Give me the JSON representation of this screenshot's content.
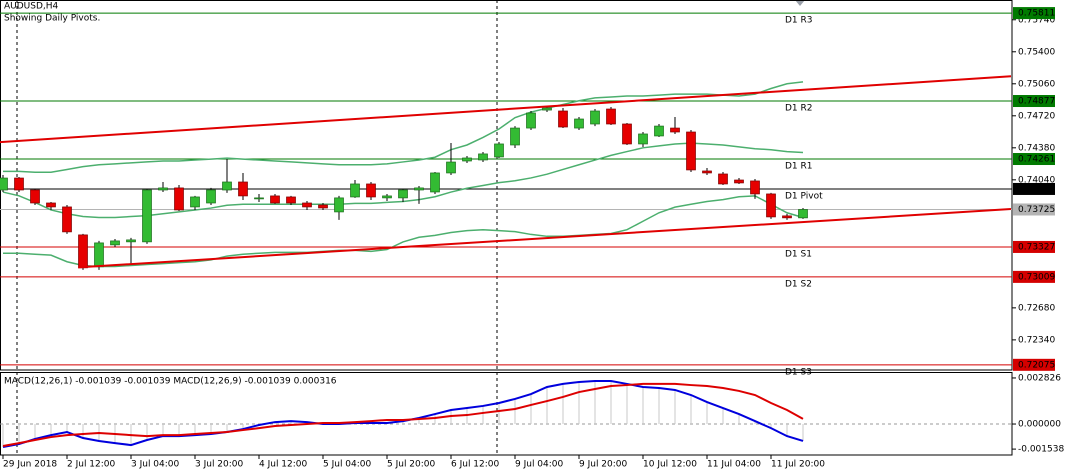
{
  "chart_data": [
    {
      "type": "candlestick",
      "title": "AUDUSD,H4",
      "subtitle": "Showing Daily Pivots.",
      "categories": [
        "29 Jun 2018",
        null,
        null,
        null,
        "2 Jul 12:00",
        null,
        null,
        null,
        "3 Jul 04:00",
        null,
        null,
        null,
        "3 Jul 20:00",
        null,
        null,
        null,
        "4 Jul 12:00",
        null,
        null,
        null,
        "5 Jul 04:00",
        null,
        null,
        null,
        "5 Jul 20:00",
        null,
        null,
        null,
        "6 Jul 12:00",
        null,
        null,
        null,
        "9 Jul 04:00",
        null,
        null,
        null,
        "9 Jul 20:00",
        null,
        null,
        null,
        "10 Jul 12:00",
        null,
        null,
        null,
        "11 Jul 04:00",
        null,
        null,
        null,
        "11 Jul 20:00",
        null,
        null
      ],
      "open": [
        0.73932,
        0.74059,
        0.73932,
        0.73794,
        0.73752,
        0.73455,
        0.73116,
        0.73349,
        0.73381,
        0.73381,
        0.73932,
        0.73954,
        0.73752,
        0.73794,
        0.73932,
        0.74017,
        0.73848,
        0.73869,
        0.73858,
        0.73794,
        0.73773,
        0.73699,
        0.73858,
        0.73996,
        0.73848,
        0.73848,
        0.73932,
        0.73911,
        0.74113,
        0.7424,
        0.74251,
        0.74283,
        0.7441,
        0.7459,
        0.74781,
        0.74771,
        0.7459,
        0.74633,
        0.74792,
        0.74633,
        0.74421,
        0.74506,
        0.7459,
        0.74548,
        0.74134,
        0.74102,
        0.74038,
        0.74028,
        0.7389,
        0.73657,
        0.73636
      ],
      "high": [
        0.74091,
        0.7407,
        0.73943,
        0.73805,
        0.73773,
        0.73466,
        0.73391,
        0.73412,
        0.73423,
        0.73943,
        0.74017,
        0.73985,
        0.73869,
        0.73954,
        0.74261,
        0.74113,
        0.7389,
        0.7389,
        0.73869,
        0.73815,
        0.73794,
        0.73869,
        0.74038,
        0.74017,
        0.7389,
        0.73943,
        0.73975,
        0.74123,
        0.74431,
        0.74293,
        0.74336,
        0.74442,
        0.74611,
        0.74771,
        0.74824,
        0.74803,
        0.74707,
        0.74792,
        0.74813,
        0.74643,
        0.74548,
        0.74633,
        0.74707,
        0.74569,
        0.74166,
        0.74123,
        0.74059,
        0.74049,
        0.73901,
        0.73678,
        0.73741
      ],
      "low": [
        0.73911,
        0.73911,
        0.73773,
        0.7372,
        0.73466,
        0.73083,
        0.73083,
        0.73327,
        0.73136,
        0.7336,
        0.73911,
        0.73709,
        0.7372,
        0.73773,
        0.73901,
        0.73826,
        0.73805,
        0.73784,
        0.73773,
        0.7372,
        0.7372,
        0.73614,
        0.73848,
        0.73826,
        0.73815,
        0.73805,
        0.73784,
        0.7389,
        0.74091,
        0.74219,
        0.74229,
        0.74272,
        0.74378,
        0.74569,
        0.7476,
        0.7459,
        0.74569,
        0.74611,
        0.74622,
        0.7441,
        0.74389,
        0.74495,
        0.74527,
        0.74123,
        0.74091,
        0.73985,
        0.73996,
        0.73837,
        0.73625,
        0.73614,
        0.73625
      ],
      "close": [
        0.74059,
        0.73932,
        0.73794,
        0.73752,
        0.73487,
        0.73105,
        0.7337,
        0.73391,
        0.73402,
        0.73932,
        0.73954,
        0.7372,
        0.73858,
        0.73932,
        0.74017,
        0.73869,
        0.73848,
        0.73794,
        0.73794,
        0.73752,
        0.73741,
        0.73848,
        0.73996,
        0.73858,
        0.73869,
        0.73932,
        0.73954,
        0.74113,
        0.74229,
        0.74272,
        0.74315,
        0.74421,
        0.7459,
        0.7475,
        0.74803,
        0.74601,
        0.74686,
        0.74771,
        0.74633,
        0.74421,
        0.74527,
        0.74611,
        0.74548,
        0.74145,
        0.74113,
        0.73996,
        0.74007,
        0.7389,
        0.73646,
        0.73636,
        0.73725
      ],
      "up_color": "#33bb33",
      "down_color": "#e60000",
      "price_line_color": "#b4b4b4",
      "bands": [
        {
          "color": "#4caf6e",
          "values": [
            0.7413,
            0.7413,
            0.7412,
            0.7412,
            0.7415,
            0.7418,
            0.742,
            0.7421,
            0.7422,
            0.7423,
            0.7424,
            0.7424,
            0.7425,
            0.7426,
            0.7427,
            0.7426,
            0.7425,
            0.7424,
            0.7423,
            0.7422,
            0.7421,
            0.742,
            0.742,
            0.742,
            0.7421,
            0.7423,
            0.7425,
            0.7428,
            0.7436,
            0.7441,
            0.7449,
            0.7458,
            0.747,
            0.7476,
            0.748,
            0.7484,
            0.7488,
            0.7491,
            0.7492,
            0.7493,
            0.7493,
            0.7494,
            0.7495,
            0.7495,
            0.7495,
            0.7494,
            0.7493,
            0.7495,
            0.7501,
            0.7506,
            0.7508
          ]
        },
        {
          "color": "#4caf6e",
          "values": [
            0.7391,
            0.7387,
            0.738,
            0.7372,
            0.7368,
            0.7365,
            0.7364,
            0.7364,
            0.7365,
            0.7366,
            0.7368,
            0.737,
            0.7372,
            0.7374,
            0.7377,
            0.7378,
            0.7378,
            0.7378,
            0.7378,
            0.7378,
            0.7378,
            0.7378,
            0.7379,
            0.7379,
            0.738,
            0.7381,
            0.7383,
            0.7386,
            0.7391,
            0.7395,
            0.7398,
            0.7401,
            0.7403,
            0.7406,
            0.741,
            0.7415,
            0.742,
            0.7425,
            0.743,
            0.7434,
            0.7438,
            0.744,
            0.7442,
            0.7443,
            0.7442,
            0.7441,
            0.7439,
            0.7437,
            0.7436,
            0.7434,
            0.7433
          ]
        },
        {
          "color": "#4caf6e",
          "values": [
            0.7326,
            0.7326,
            0.7325,
            0.7324,
            0.7317,
            0.7313,
            0.7312,
            0.7312,
            0.7313,
            0.7314,
            0.7315,
            0.7316,
            0.7317,
            0.7319,
            0.7323,
            0.7325,
            0.7326,
            0.7327,
            0.7327,
            0.7327,
            0.7328,
            0.7329,
            0.7329,
            0.7328,
            0.733,
            0.7338,
            0.7343,
            0.7345,
            0.7348,
            0.735,
            0.7351,
            0.735,
            0.7349,
            0.7346,
            0.7344,
            0.7344,
            0.7345,
            0.7346,
            0.7347,
            0.7351,
            0.736,
            0.7369,
            0.7375,
            0.7378,
            0.7381,
            0.7383,
            0.7386,
            0.7387,
            0.7378,
            0.7369,
            0.7364
          ]
        }
      ],
      "trendlines": [
        {
          "color": "#e00000",
          "x": [
            -0.2,
            63
          ],
          "values": [
            0.7444,
            0.7514
          ]
        },
        {
          "color": "#e00000",
          "x": [
            4.7,
            63
          ],
          "values": [
            0.7311,
            0.7373
          ]
        }
      ],
      "levels": [
        {
          "name": "D1 R3",
          "value": 0.75811,
          "color": "#007a00"
        },
        {
          "name": "D1 R2",
          "value": 0.74877,
          "color": "#007a00"
        },
        {
          "name": "D1 R1",
          "value": 0.74261,
          "color": "#007a00"
        },
        {
          "name": "D1 Pivot",
          "value": 0.73943,
          "color": "#000000"
        },
        {
          "name": "D1 S1",
          "value": 0.73327,
          "color": "#d40000"
        },
        {
          "name": "D1 S2",
          "value": 0.73009,
          "color": "#d40000"
        },
        {
          "name": "D1 S3",
          "value": 0.72075,
          "color": "#d40000"
        }
      ],
      "ylim": [
        0.7202,
        0.7595
      ],
      "yticks": [
        {
          "value": 0.7574,
          "label": "0.75740"
        },
        {
          "value": 0.754,
          "label": "0.75400"
        },
        {
          "value": 0.7506,
          "label": "0.75060"
        },
        {
          "value": 0.7472,
          "label": "0.74720"
        },
        {
          "value": 0.7438,
          "label": "0.74380"
        },
        {
          "value": 0.7404,
          "label": "0.74040"
        },
        {
          "value": 0.7268,
          "label": "0.72680"
        },
        {
          "value": 0.7234,
          "label": "0.72340"
        }
      ]
    },
    {
      "type": "macd",
      "title": "MACD(12,26,1) -0.001039 -0.001039 MACD(12,26,9) -0.001039 0.000316",
      "histogram_color": "#c8c8c8",
      "series": [
        {
          "color": "#0000dd",
          "values": [
            -0.00141,
            -0.00123,
            -0.00092,
            -0.00068,
            -0.00049,
            -0.00086,
            -0.00104,
            -0.00117,
            -0.00129,
            -0.00098,
            -0.00074,
            -0.00074,
            -0.00068,
            -0.00061,
            -0.00049,
            -0.00031,
            -6e-05,
            0.00012,
            0.00018,
            0.00012,
            0,
            0,
            6e-05,
            6e-05,
            6e-05,
            0.00018,
            0.00037,
            0.00061,
            0.00086,
            0.00098,
            0.00111,
            0.00129,
            0.00154,
            0.00184,
            0.00227,
            0.00246,
            0.00258,
            0.00264,
            0.00264,
            0.00246,
            0.00227,
            0.00221,
            0.00209,
            0.00178,
            0.00135,
            0.00098,
            0.00061,
            0.00018,
            -0.00025,
            -0.00074,
            -0.001039
          ]
        },
        {
          "color": "#dd0000",
          "values": [
            -0.00135,
            -0.00117,
            -0.00098,
            -0.0008,
            -0.00068,
            -0.00061,
            -0.00055,
            -0.00061,
            -0.00068,
            -0.00074,
            -0.00068,
            -0.00068,
            -0.00061,
            -0.00055,
            -0.00049,
            -0.00037,
            -0.00025,
            -0.00012,
            -6e-05,
            0,
            6e-05,
            6e-05,
            0.00012,
            0.00018,
            0.00025,
            0.00025,
            0.00031,
            0.00037,
            0.00049,
            0.00055,
            0.00068,
            0.0008,
            0.00092,
            0.00117,
            0.00141,
            0.00166,
            0.00196,
            0.00215,
            0.00233,
            0.00239,
            0.00246,
            0.00246,
            0.00246,
            0.00239,
            0.00233,
            0.00221,
            0.00203,
            0.00178,
            0.00129,
            0.00086,
            0.000316
          ]
        }
      ],
      "ylim": [
        -0.0019,
        0.00313
      ],
      "yticks": [
        0.002826,
        {
          "value": 0,
          "label": "0.000000"
        },
        -0.001538
      ]
    }
  ]
}
